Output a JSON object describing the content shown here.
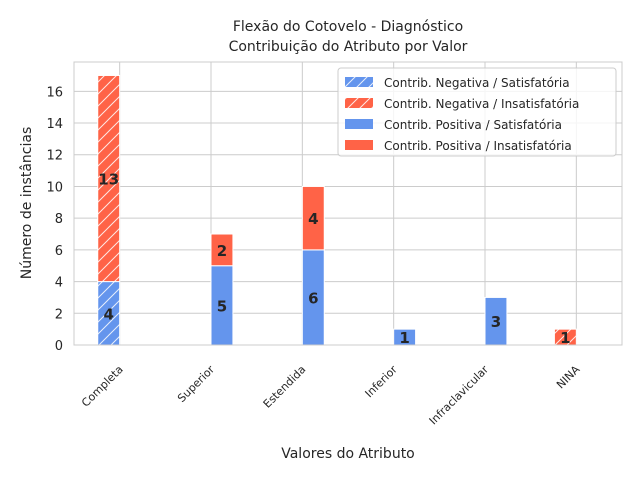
{
  "chart_data": {
    "type": "bar",
    "title": "Flexão do Cotovelo - Diagnóstico",
    "subtitle": "Contribuição do Atributo por Valor",
    "xlabel": "Valores do Atributo",
    "ylabel": "Número de instâncias",
    "ylim": [
      0,
      17.85
    ],
    "yticks": [
      0,
      2,
      4,
      6,
      8,
      10,
      12,
      14,
      16
    ],
    "grid": true,
    "legend_position": "top-right",
    "categories": [
      "Completa",
      "Superior",
      "Estendida",
      "Inferior",
      "Infraclavicular",
      "NINA"
    ],
    "colors": {
      "satisfatoria": "#6495ED",
      "insatisfatoria": "#FF6347"
    },
    "series": [
      {
        "name": "Contrib. Negativa / Satisfatória",
        "group": "negativa",
        "outcome": "satisfatoria",
        "hatch": true,
        "values": [
          4,
          0,
          0,
          0,
          0,
          0
        ]
      },
      {
        "name": "Contrib. Negativa / Insatisfatória",
        "group": "negativa",
        "outcome": "insatisfatoria",
        "hatch": true,
        "values": [
          13,
          0,
          0,
          0,
          0,
          1
        ]
      },
      {
        "name": "Contrib. Positiva / Satisfatória",
        "group": "positiva",
        "outcome": "satisfatoria",
        "hatch": false,
        "values": [
          0,
          5,
          6,
          1,
          3,
          0
        ]
      },
      {
        "name": "Contrib. Positiva / Insatisfatória",
        "group": "positiva",
        "outcome": "insatisfatoria",
        "hatch": false,
        "values": [
          0,
          2,
          4,
          0,
          0,
          0
        ]
      }
    ]
  }
}
